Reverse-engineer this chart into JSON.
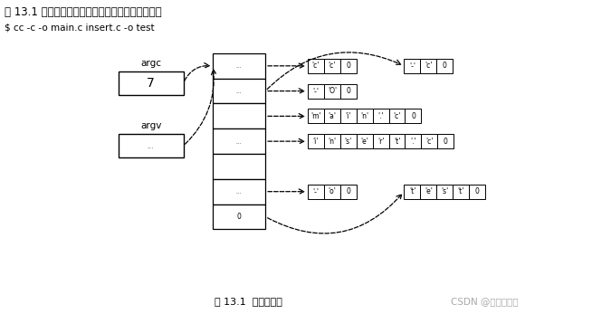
{
  "title_text": "图 13.1 显示了下面这条命令行是如何进行传递的：",
  "command_text": "$ cc -c -o main.c insert.c -o test",
  "caption": "图 13.1  命令行参数",
  "watermark": "CSDN @燕麦冲冲冲",
  "argc_label": "argc",
  "argc_value": "7",
  "argv_label": "argv",
  "bg_color": "#ffffff",
  "box_color": "#000000",
  "text_color": "#000000"
}
